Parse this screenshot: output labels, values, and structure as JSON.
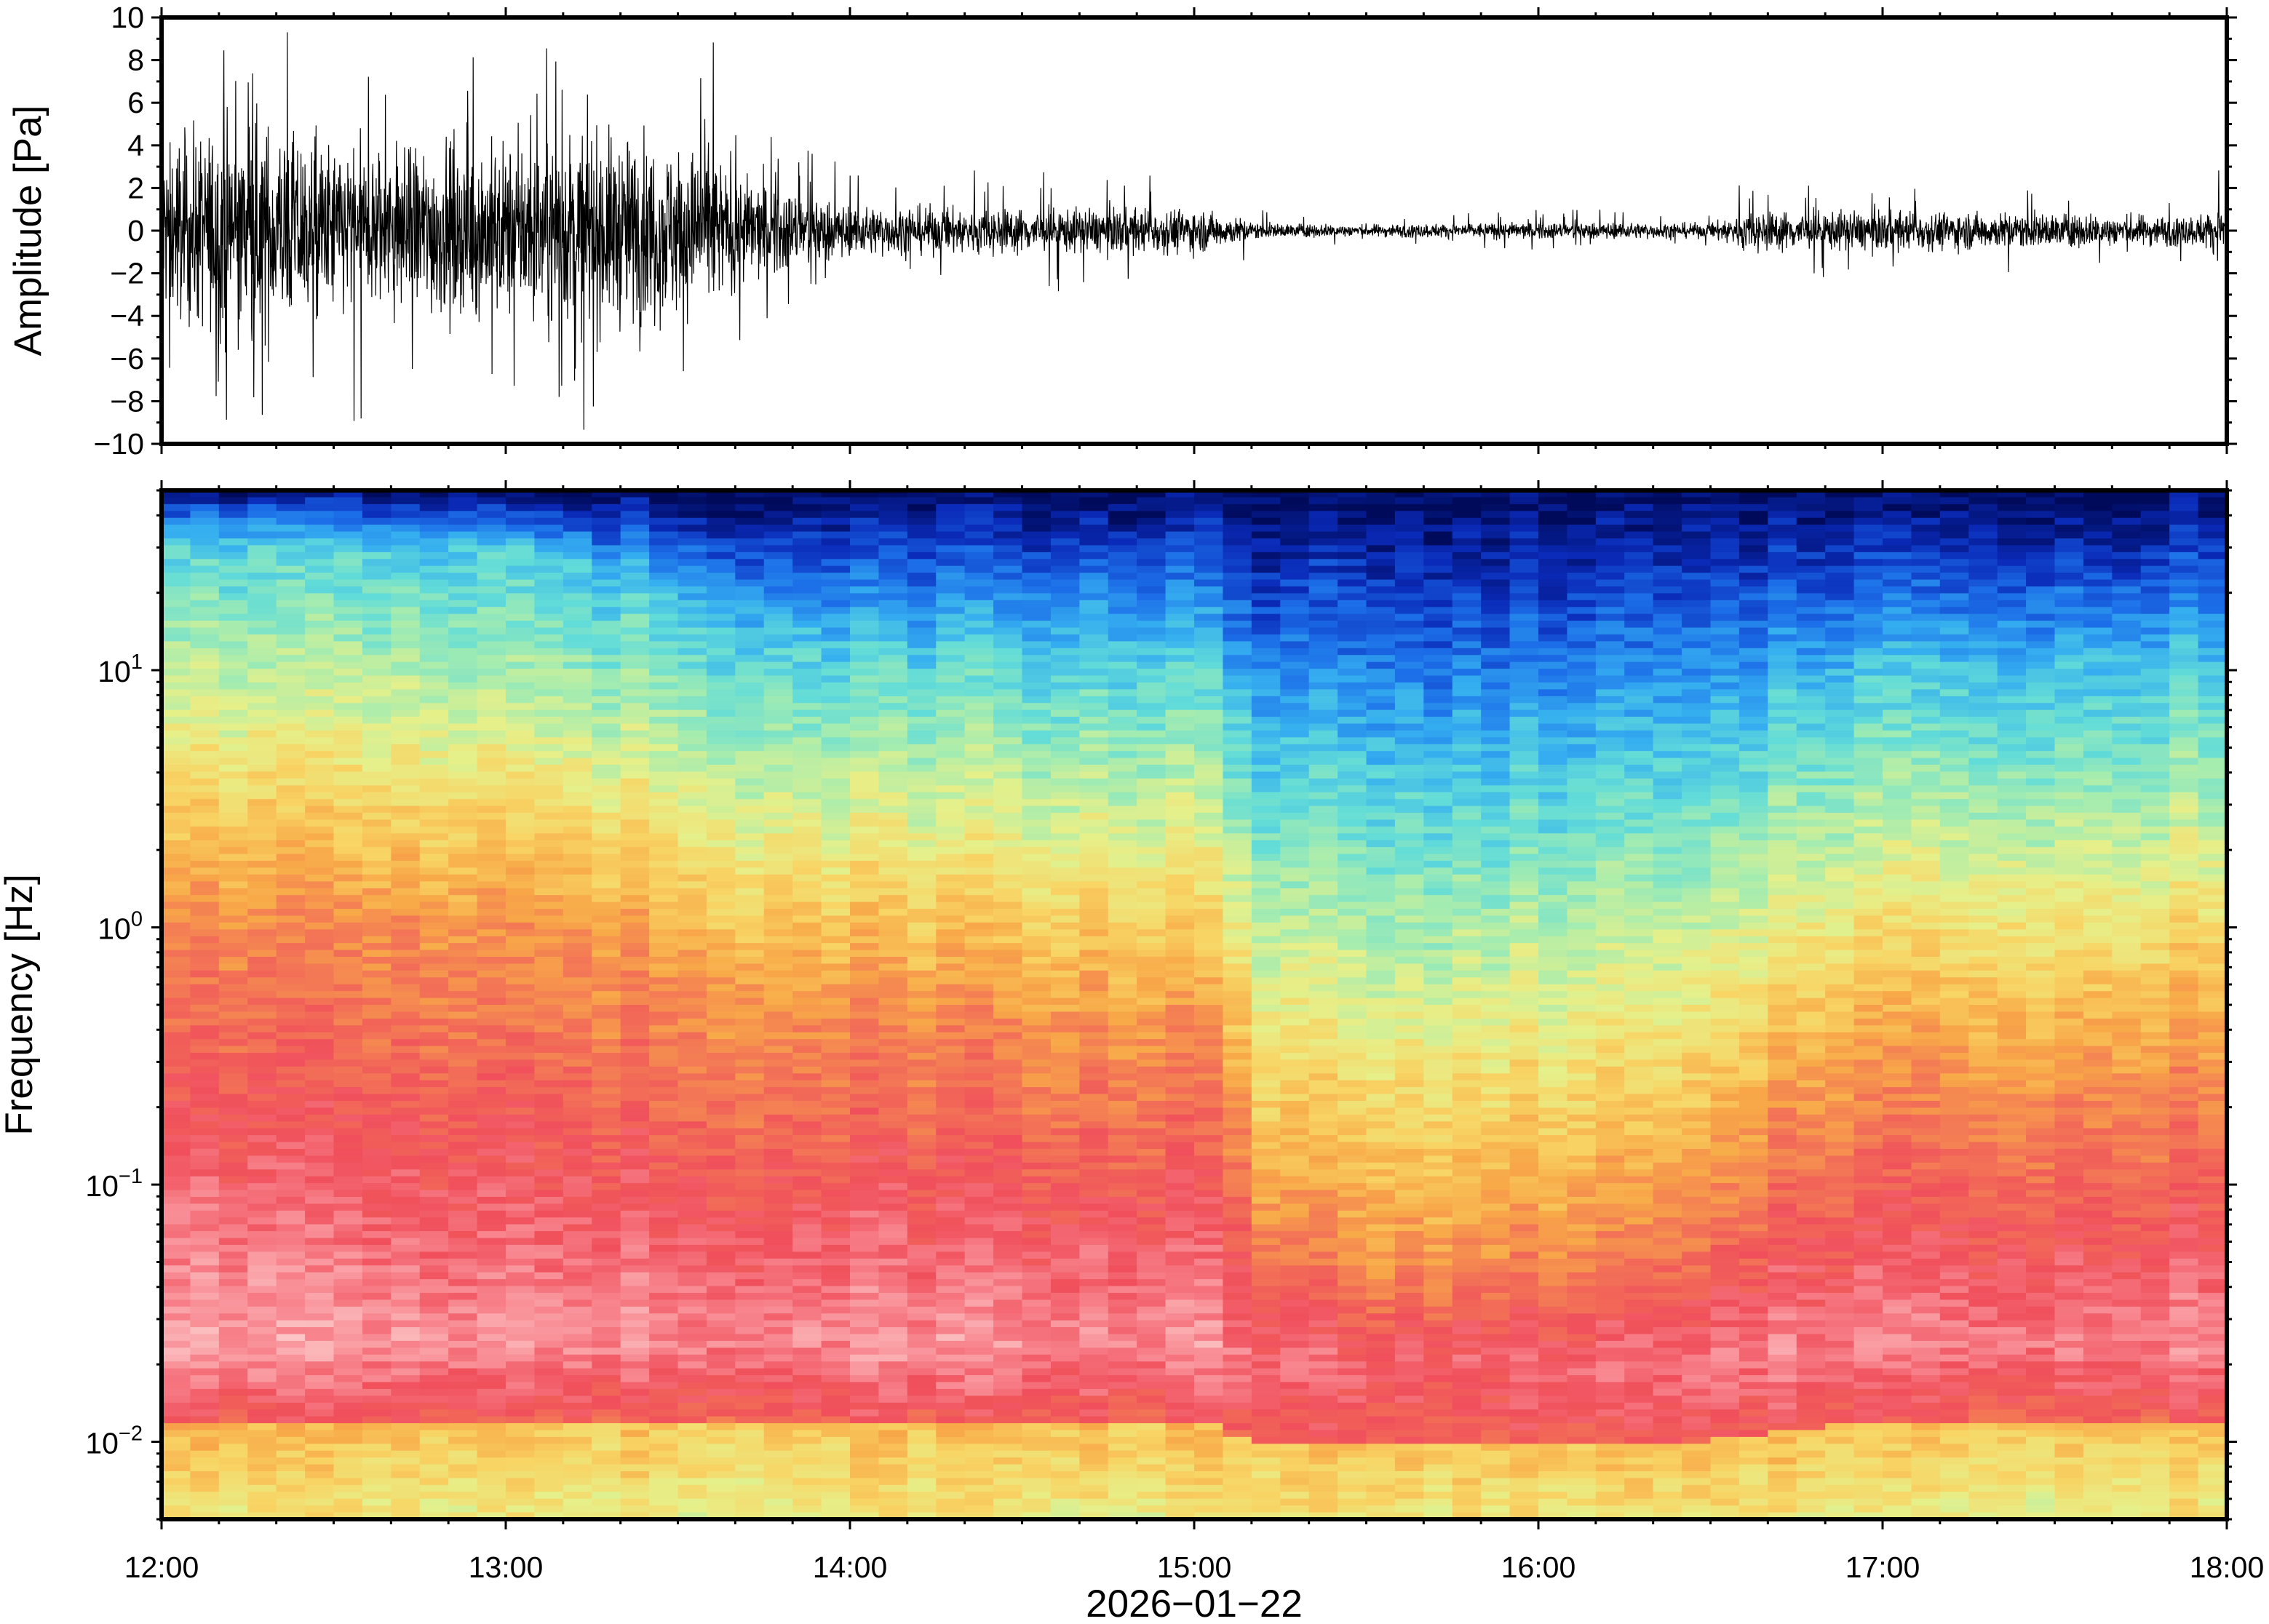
{
  "chart_data": [
    {
      "type": "line",
      "panel": "waveform",
      "title": "",
      "xlabel": "",
      "ylabel": "Amplitude [Pa]",
      "xlim": [
        "12:00",
        "18:00"
      ],
      "ylim": [
        -10,
        10
      ],
      "yticks": [
        "10",
        "8",
        "6",
        "4",
        "2",
        "0",
        "−2",
        "−4",
        "−6",
        "−8",
        "−10"
      ],
      "ytick_values": [
        10,
        8,
        6,
        4,
        2,
        0,
        -2,
        -4,
        -6,
        -8,
        -10
      ],
      "line_color": "#000000",
      "envelope": {
        "time_hours": [
          12.0,
          12.25,
          12.5,
          12.75,
          13.0,
          13.25,
          13.5,
          13.6,
          13.7,
          14.0,
          14.5,
          15.0,
          15.2,
          15.5,
          16.0,
          16.5,
          16.6,
          17.0,
          17.5,
          17.9,
          18.0
        ],
        "typical_amplitude_pa": [
          3.5,
          4.5,
          3.5,
          3.5,
          3.5,
          4.0,
          3.5,
          3.0,
          2.2,
          1.0,
          0.9,
          0.9,
          0.3,
          0.25,
          0.35,
          0.3,
          0.8,
          0.8,
          0.7,
          0.6,
          1.0
        ],
        "peak_amplitude_pa": [
          7,
          10,
          9,
          10,
          8,
          10,
          8,
          10,
          5,
          3,
          3,
          2.5,
          1.0,
          0.8,
          1.0,
          1.0,
          2.5,
          2.0,
          2.0,
          2.0,
          4.0
        ]
      }
    },
    {
      "type": "heatmap",
      "panel": "spectrogram",
      "title": "",
      "xlabel": "2026−01−22",
      "ylabel": "Frequency [Hz]",
      "xticks": [
        "12:00",
        "13:00",
        "14:00",
        "15:00",
        "16:00",
        "17:00",
        "18:00"
      ],
      "xtick_hours": [
        12,
        13,
        14,
        15,
        16,
        17,
        18
      ],
      "yscale": "log",
      "ylim_hz": [
        0.005,
        50
      ],
      "yticks": [
        {
          "base": "10",
          "exp": "−2",
          "value": 0.01
        },
        {
          "base": "10",
          "exp": "−1",
          "value": 0.1
        },
        {
          "base": "10",
          "exp": "0",
          "value": 1
        },
        {
          "base": "10",
          "exp": "1",
          "value": 10
        }
      ],
      "colormap": [
        "#000a5a",
        "#0a2ab8",
        "#1c6ee8",
        "#35aef0",
        "#62dcd8",
        "#a4ecb0",
        "#e6f08a",
        "#f8d464",
        "#f8a848",
        "#f37656",
        "#f04f5b",
        "#f88790",
        "#fcc4c4"
      ],
      "relative_power_profile": {
        "time_hours": [
          12.0,
          13.0,
          13.7,
          14.0,
          15.0,
          15.2,
          15.5,
          16.0,
          16.5,
          17.0,
          18.0
        ],
        "boundary_low_hz": [
          0.012,
          0.012,
          0.012,
          0.012,
          0.012,
          0.01,
          0.01,
          0.01,
          0.01,
          0.012,
          0.012
        ],
        "boundary_mid_hz": [
          1.0,
          1.0,
          0.6,
          0.5,
          0.4,
          0.08,
          0.05,
          0.06,
          0.08,
          0.3,
          0.3
        ],
        "boundary_high_hz": [
          30,
          30,
          15,
          12,
          12,
          5,
          4,
          4,
          5,
          10,
          10
        ]
      }
    }
  ]
}
